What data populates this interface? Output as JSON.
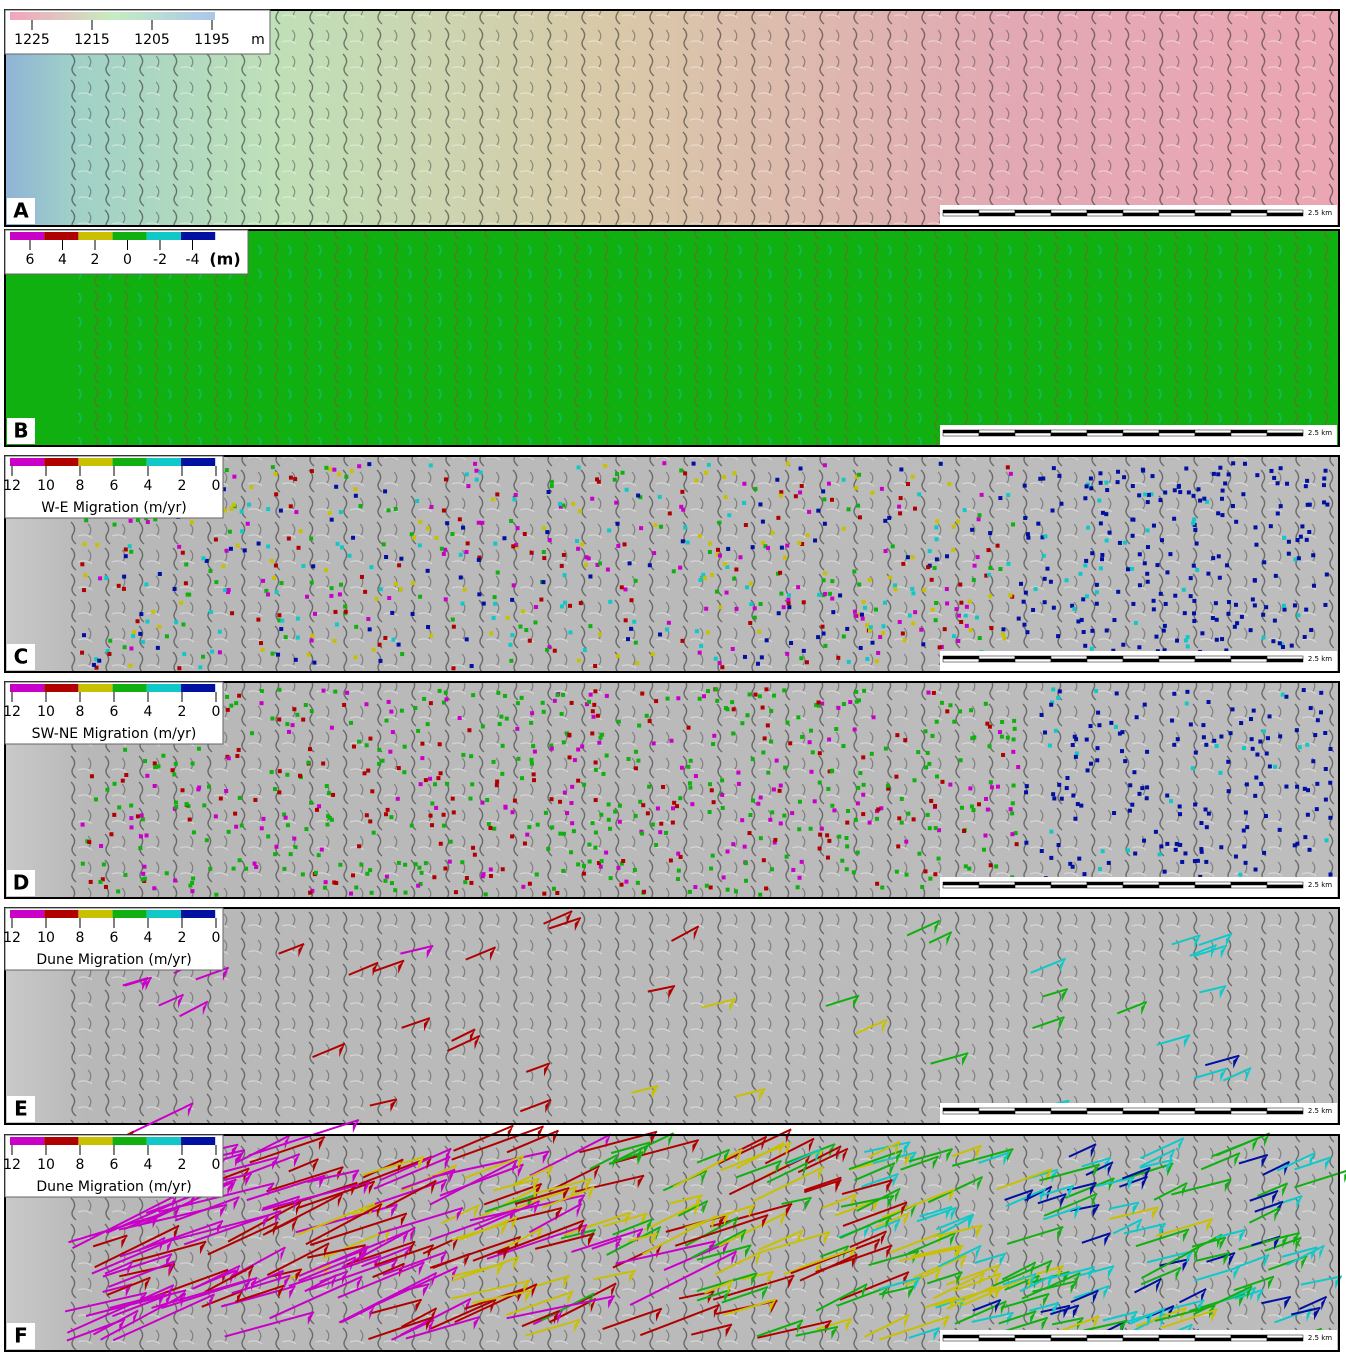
{
  "panels": [
    {
      "label": "A",
      "legend": {
        "ticks": [
          "1225",
          "1215",
          "1205",
          "1195"
        ],
        "unit": "m"
      },
      "scale_label": "2.5 km"
    },
    {
      "label": "B",
      "legend": {
        "ticks": [
          "6",
          "4",
          "2",
          "0",
          "-2",
          "-4"
        ],
        "unit": "(m)"
      },
      "scale_label": "2.5 km"
    },
    {
      "label": "C",
      "legend": {
        "ticks": [
          "12",
          "10",
          "8",
          "6",
          "4",
          "2",
          "0"
        ],
        "title": "W-E Migration (m/yr)"
      },
      "scale_label": "2.5 km"
    },
    {
      "label": "D",
      "legend": {
        "ticks": [
          "12",
          "10",
          "8",
          "6",
          "4",
          "2",
          "0"
        ],
        "title": "SW-NE Migration (m/yr)"
      },
      "scale_label": "2.5 km"
    },
    {
      "label": "E",
      "legend": {
        "ticks": [
          "12",
          "10",
          "8",
          "6",
          "4",
          "2",
          "0"
        ],
        "title": "Dune Migration (m/yr)"
      },
      "scale_label": "2.5 km"
    },
    {
      "label": "F",
      "legend": {
        "ticks": [
          "12",
          "10",
          "8",
          "6",
          "4",
          "2",
          "0"
        ],
        "title": "Dune Migration (m/yr)"
      },
      "scale_label": "2.5 km"
    }
  ]
}
